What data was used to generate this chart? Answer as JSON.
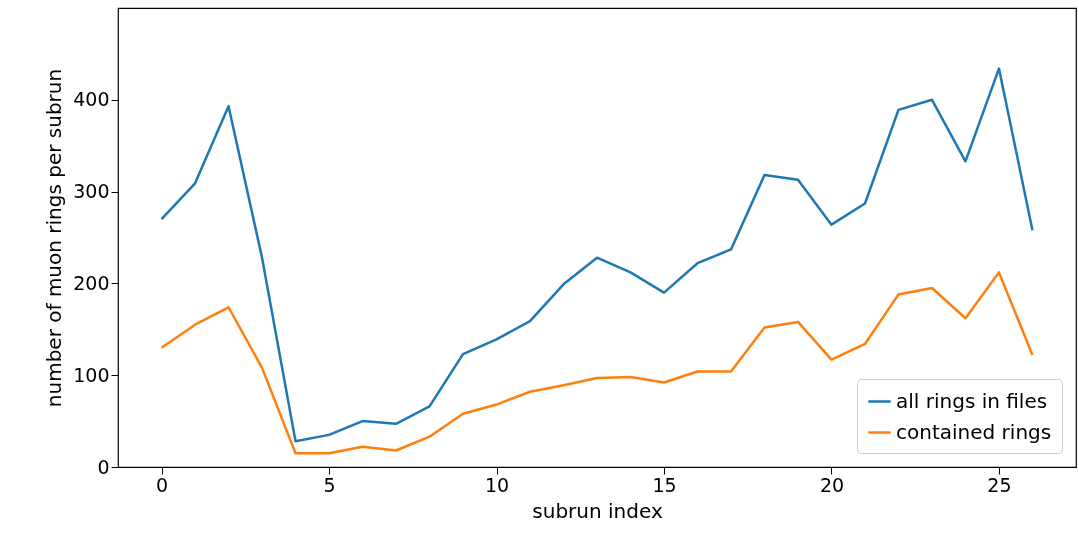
{
  "chart_data": {
    "type": "line",
    "xlabel": "subrun index",
    "ylabel": "number of muon rings per subrun",
    "x": [
      0,
      1,
      2,
      3,
      4,
      5,
      6,
      7,
      8,
      9,
      10,
      11,
      12,
      13,
      14,
      15,
      16,
      17,
      18,
      19,
      20,
      21,
      22,
      23,
      24,
      25,
      26
    ],
    "series": [
      {
        "name": "all rings in files",
        "color": "#1f77b4",
        "values": [
          270,
          309,
          393,
          228,
          28,
          35,
          50,
          47,
          66,
          123,
          139,
          159,
          199,
          228,
          212,
          190,
          222,
          237,
          318,
          313,
          264,
          287,
          389,
          400,
          333,
          434,
          258
        ]
      },
      {
        "name": "contained rings",
        "color": "#ff7f0e",
        "values": [
          130,
          155,
          174,
          108,
          15,
          15,
          22,
          18,
          33,
          58,
          68,
          82,
          89,
          97,
          98,
          92,
          104,
          104,
          152,
          158,
          117,
          134,
          188,
          195,
          162,
          212,
          122
        ]
      }
    ],
    "xlim": [
      -1.3,
      27.3
    ],
    "ylim": [
      0,
      500
    ],
    "xticks": [
      0,
      5,
      10,
      15,
      20,
      25
    ],
    "yticks": [
      0,
      100,
      200,
      300,
      400
    ],
    "grid": false,
    "legend": "bottom right",
    "marker": "none",
    "line_style": "solid"
  }
}
